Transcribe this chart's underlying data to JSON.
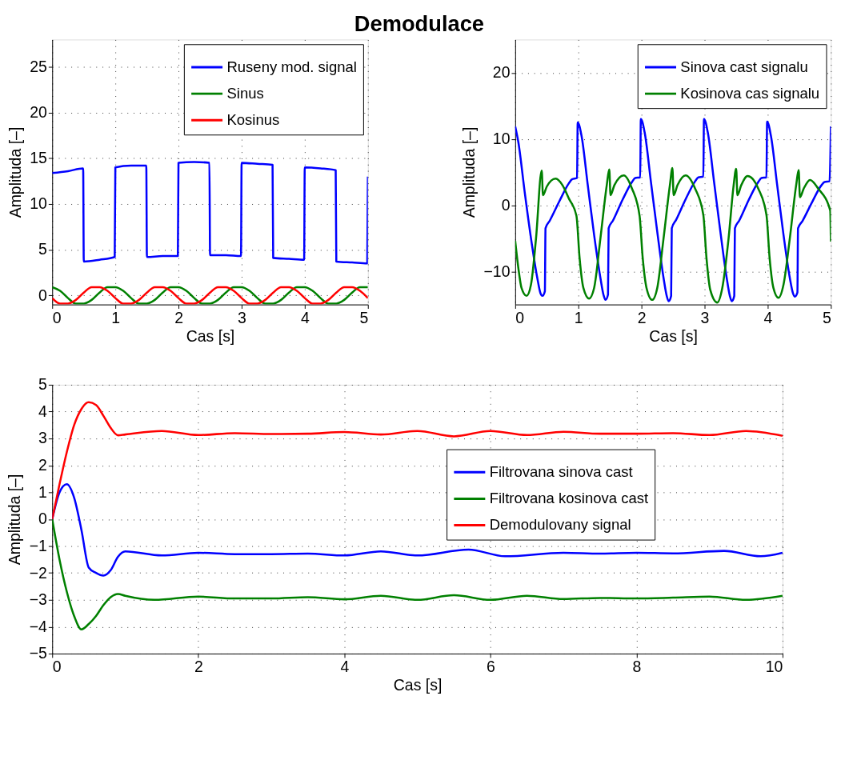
{
  "chart_data": [
    {
      "type": "line",
      "title": "Demodulace",
      "xlabel": "Cas [s]",
      "ylabel": "Amplituda [–]",
      "xlim": [
        0,
        5
      ],
      "ylim": [
        -1,
        28
      ],
      "xticks": [
        0,
        1,
        2,
        3,
        4,
        5
      ],
      "yticks": [
        0,
        5,
        10,
        15,
        20,
        25
      ],
      "grid": true,
      "legend": "top right",
      "line_style": "solid",
      "series": [
        {
          "name": "Ruseny mod. signal",
          "color": "#0000ff",
          "x": [
            0,
            0.25,
            0.49,
            0.5,
            0.75,
            0.99,
            1,
            1.25,
            1.49,
            1.5,
            1.75,
            1.99,
            2,
            2.25,
            2.49,
            2.5,
            2.75,
            2.99,
            3,
            3.25,
            3.49,
            3.5,
            3.75,
            3.99,
            4,
            4.25,
            4.49,
            4.5,
            4.75,
            4.99,
            5
          ],
          "values": [
            13.4,
            13.6,
            13.9,
            3.7,
            3.9,
            4.2,
            14.0,
            14.2,
            14.2,
            4.2,
            4.3,
            4.3,
            14.5,
            14.6,
            14.5,
            4.4,
            4.4,
            4.3,
            14.5,
            14.4,
            14.3,
            4.1,
            4.0,
            3.9,
            14.0,
            13.9,
            13.7,
            3.7,
            3.6,
            3.5,
            13.0
          ]
        },
        {
          "name": "Sinus",
          "color": "#008000",
          "x": [
            0,
            0.125,
            0.25,
            0.375,
            0.5,
            0.625,
            0.75,
            0.875,
            1,
            1.125,
            1.25,
            1.375,
            1.5,
            1.625,
            1.75,
            1.875,
            2,
            2.125,
            2.25,
            2.375,
            2.5,
            2.625,
            2.75,
            2.875,
            3,
            3.125,
            3.25,
            3.375,
            3.5,
            3.625,
            3.75,
            3.875,
            4,
            4.125,
            4.25,
            4.375,
            4.5,
            4.625,
            4.75,
            4.875,
            5
          ],
          "values": [
            0.9,
            0.5,
            -0.3,
            -0.9,
            -0.9,
            -0.5,
            0.3,
            0.9,
            0.9,
            0.5,
            -0.3,
            -0.9,
            -0.9,
            -0.5,
            0.3,
            0.9,
            0.9,
            0.5,
            -0.3,
            -0.9,
            -0.9,
            -0.5,
            0.3,
            0.9,
            0.9,
            0.5,
            -0.3,
            -0.9,
            -0.9,
            -0.5,
            0.3,
            0.9,
            0.9,
            0.5,
            -0.3,
            -0.9,
            -0.9,
            -0.5,
            0.3,
            0.9,
            0.9
          ]
        },
        {
          "name": "Kosinus",
          "color": "#ff0000",
          "x": [
            0,
            0.125,
            0.25,
            0.375,
            0.5,
            0.625,
            0.75,
            0.875,
            1,
            1.125,
            1.25,
            1.375,
            1.5,
            1.625,
            1.75,
            1.875,
            2,
            2.125,
            2.25,
            2.375,
            2.5,
            2.625,
            2.75,
            2.875,
            3,
            3.125,
            3.25,
            3.375,
            3.5,
            3.625,
            3.75,
            3.875,
            4,
            4.125,
            4.25,
            4.375,
            4.5,
            4.625,
            4.75,
            4.875,
            5
          ],
          "values": [
            -0.3,
            -0.9,
            -0.9,
            -0.5,
            0.3,
            0.9,
            0.9,
            0.5,
            -0.3,
            -0.9,
            -0.9,
            -0.5,
            0.3,
            0.9,
            0.9,
            0.5,
            -0.3,
            -0.9,
            -0.9,
            -0.5,
            0.3,
            0.9,
            0.9,
            0.5,
            -0.3,
            -0.9,
            -0.9,
            -0.5,
            0.3,
            0.9,
            0.9,
            0.5,
            -0.3,
            -0.9,
            -0.9,
            -0.5,
            0.3,
            0.9,
            0.9,
            0.5,
            -0.3
          ]
        }
      ]
    },
    {
      "type": "line",
      "xlabel": "Cas [s]",
      "ylabel": "Amplituda [–]",
      "xlim": [
        0,
        5
      ],
      "ylim": [
        -15,
        25
      ],
      "xticks": [
        0,
        1,
        2,
        3,
        4,
        5
      ],
      "yticks": [
        -10,
        0,
        10,
        20
      ],
      "grid": true,
      "legend": "top right",
      "line_style": "solid",
      "series": [
        {
          "name": "Sinova cast signalu",
          "color": "#0000ff",
          "x": [
            0,
            0.05,
            0.15,
            0.25,
            0.35,
            0.4,
            0.43,
            0.47,
            0.48,
            0.55,
            0.7,
            0.85,
            0.9,
            0.98,
            0.99,
            1.05,
            1.15,
            1.25,
            1.35,
            1.4,
            1.43,
            1.47,
            1.48,
            1.55,
            1.7,
            1.85,
            1.9,
            1.98,
            1.99,
            2.05,
            2.15,
            2.25,
            2.35,
            2.4,
            2.43,
            2.47,
            2.48,
            2.55,
            2.7,
            2.85,
            2.9,
            2.98,
            2.99,
            3.05,
            3.15,
            3.25,
            3.35,
            3.4,
            3.43,
            3.47,
            3.48,
            3.55,
            3.7,
            3.85,
            3.9,
            3.98,
            3.99,
            4.05,
            4.15,
            4.25,
            4.35,
            4.4,
            4.43,
            4.47,
            4.48,
            4.55,
            4.7,
            4.85,
            4.9,
            4.98,
            5
          ],
          "values": [
            11.9,
            9.5,
            2,
            -5,
            -11,
            -13.3,
            -13.7,
            -13,
            -3.5,
            -2.3,
            0.6,
            3.3,
            3.9,
            4.1,
            12.5,
            10.5,
            3,
            -4.5,
            -11,
            -13.6,
            -14.3,
            -13.5,
            -3.5,
            -2.3,
            0.8,
            3.5,
            4.1,
            4.2,
            13.0,
            11,
            3.5,
            -4,
            -11,
            -13.7,
            -14.5,
            -13.7,
            -3.5,
            -2.2,
            0.9,
            3.6,
            4.2,
            4.3,
            13.0,
            11,
            3.5,
            -4,
            -11,
            -13.7,
            -14.5,
            -13.7,
            -3.5,
            -2.3,
            0.8,
            3.5,
            4.1,
            4.2,
            12.6,
            10.5,
            3,
            -4.5,
            -11,
            -13.3,
            -13.8,
            -13.2,
            -3.5,
            -2.4,
            0.4,
            3.0,
            3.5,
            3.6,
            11.9
          ]
        },
        {
          "name": "Kosinova cas signalu",
          "color": "#008000",
          "x": [
            0,
            0.05,
            0.1,
            0.18,
            0.25,
            0.33,
            0.42,
            0.44,
            0.5,
            0.64,
            0.75,
            0.85,
            0.97,
            1.02,
            1.08,
            1.17,
            1.25,
            1.35,
            1.45,
            1.49,
            1.51,
            1.57,
            1.72,
            1.85,
            1.97,
            2.02,
            2.08,
            2.17,
            2.25,
            2.35,
            2.45,
            2.49,
            2.51,
            2.57,
            2.7,
            2.85,
            2.98,
            3.03,
            3.09,
            3.2,
            3.28,
            3.38,
            3.46,
            3.5,
            3.52,
            3.58,
            3.68,
            3.85,
            3.98,
            4.03,
            4.09,
            4.17,
            4.25,
            4.35,
            4.45,
            4.49,
            4.51,
            4.57,
            4.67,
            4.8,
            4.99,
            5
          ],
          "values": [
            -5.4,
            -9.5,
            -12.5,
            -13.7,
            -12,
            -5,
            5.2,
            1.5,
            2.8,
            4.0,
            3,
            1,
            -1.6,
            -8,
            -12.5,
            -14.1,
            -12.5,
            -5,
            3,
            5.4,
            1.5,
            3,
            4.5,
            2.5,
            -1.6,
            -8,
            -12.5,
            -14.3,
            -12.5,
            -5,
            3,
            5.6,
            1.5,
            3,
            4.5,
            2.5,
            -1.5,
            -8,
            -12.8,
            -14.7,
            -12.5,
            -5,
            3,
            5.5,
            1.5,
            3,
            4.4,
            2.5,
            -1.5,
            -8,
            -12.5,
            -14,
            -12,
            -5,
            3,
            5.3,
            1.2,
            2.5,
            3.8,
            2.5,
            -0.8,
            -5.5
          ]
        }
      ]
    },
    {
      "type": "line",
      "xlabel": "Cas [s]",
      "ylabel": "Amplituda [–]",
      "xlim": [
        0,
        10
      ],
      "ylim": [
        -5,
        5
      ],
      "xticks": [
        0,
        2,
        4,
        6,
        8,
        10
      ],
      "yticks": [
        -5,
        -4,
        -3,
        -2,
        -1,
        0,
        1,
        2,
        3,
        4,
        5
      ],
      "grid": true,
      "legend": "right",
      "line_style": "solid",
      "series": [
        {
          "name": "Filtrovana sinova cast",
          "color": "#0000ff",
          "x": [
            0,
            0.1,
            0.2,
            0.3,
            0.4,
            0.5,
            0.6,
            0.7,
            0.8,
            0.9,
            1,
            1.5,
            2,
            2.5,
            3,
            3.5,
            4,
            4.5,
            5,
            5.7,
            6.2,
            7,
            7.5,
            8,
            8.5,
            9.2,
            9.7,
            10
          ],
          "values": [
            0,
            1.0,
            1.3,
            0.8,
            -0.4,
            -1.8,
            -2.0,
            -2.1,
            -1.9,
            -1.4,
            -1.2,
            -1.35,
            -1.25,
            -1.3,
            -1.3,
            -1.28,
            -1.35,
            -1.2,
            -1.35,
            -1.13,
            -1.38,
            -1.25,
            -1.28,
            -1.25,
            -1.27,
            -1.18,
            -1.38,
            -1.25
          ]
        },
        {
          "name": "Filtrovana kosinova cast",
          "color": "#008000",
          "x": [
            0,
            0.1,
            0.2,
            0.3,
            0.4,
            0.5,
            0.6,
            0.7,
            0.8,
            0.9,
            1,
            1.4,
            2,
            2.5,
            3,
            3.5,
            4,
            4.5,
            5,
            5.5,
            6,
            6.5,
            7,
            7.5,
            8,
            8.5,
            9,
            9.5,
            10
          ],
          "values": [
            0,
            -1.5,
            -2.7,
            -3.6,
            -4.1,
            -3.9,
            -3.6,
            -3.2,
            -2.9,
            -2.78,
            -2.85,
            -3.0,
            -2.88,
            -2.95,
            -2.95,
            -2.9,
            -2.98,
            -2.85,
            -3.0,
            -2.83,
            -3.0,
            -2.85,
            -2.97,
            -2.93,
            -2.95,
            -2.92,
            -2.88,
            -3.0,
            -2.85
          ]
        },
        {
          "name": "Demodulovany signal",
          "color": "#ff0000",
          "x": [
            0,
            0.1,
            0.2,
            0.3,
            0.4,
            0.5,
            0.6,
            0.7,
            0.8,
            0.9,
            1,
            1.5,
            2,
            2.5,
            3,
            3.5,
            4,
            4.5,
            5,
            5.5,
            6,
            6.5,
            7,
            7.5,
            8,
            8.5,
            9,
            9.5,
            10
          ],
          "values": [
            0,
            1.3,
            2.5,
            3.5,
            4.1,
            4.35,
            4.25,
            3.85,
            3.4,
            3.12,
            3.15,
            3.28,
            3.13,
            3.2,
            3.17,
            3.18,
            3.24,
            3.15,
            3.28,
            3.08,
            3.28,
            3.13,
            3.25,
            3.18,
            3.18,
            3.2,
            3.13,
            3.28,
            3.1
          ]
        }
      ]
    }
  ]
}
